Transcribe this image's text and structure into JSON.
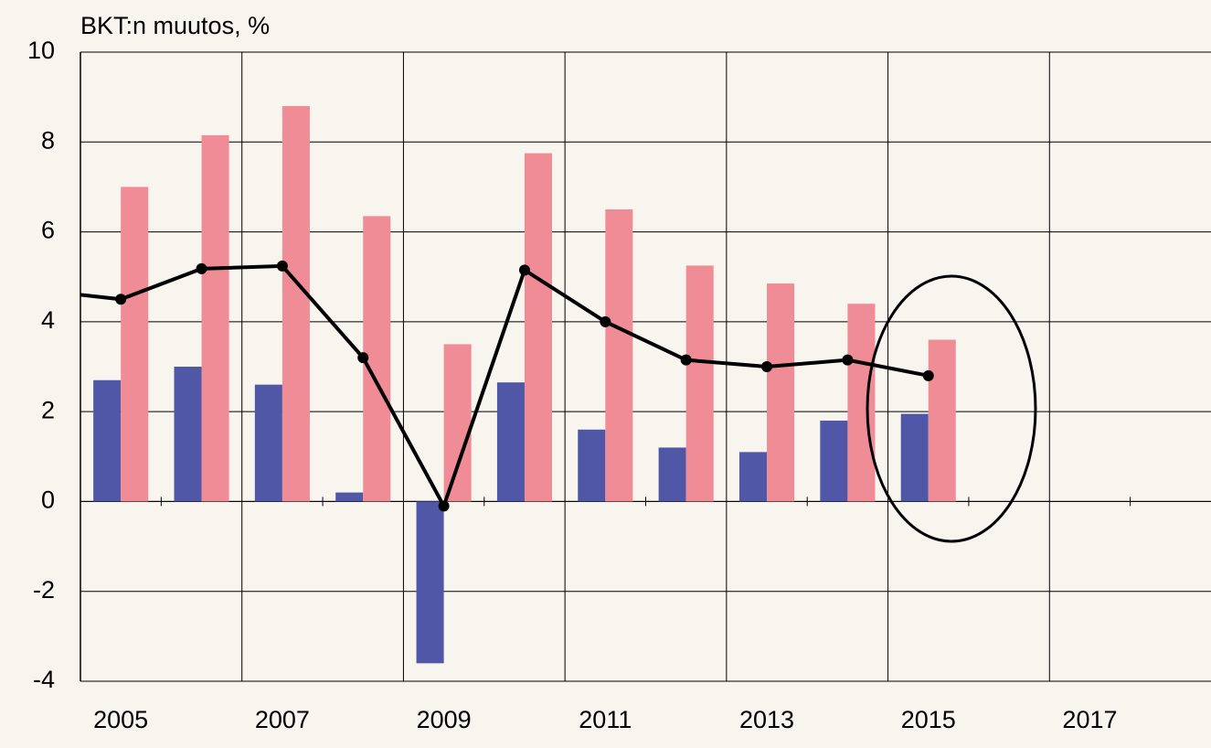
{
  "chart_data": {
    "type": "bar-line",
    "title": "BKT:n muutos, %",
    "x": [
      2004,
      2005,
      2006,
      2007,
      2008,
      2009,
      2010,
      2011,
      2012,
      2013,
      2014,
      2015
    ],
    "series": [
      {
        "type": "bar",
        "color": "#4f57a6",
        "values": [
          null,
          2.7,
          3.0,
          2.6,
          0.2,
          -3.6,
          2.65,
          1.6,
          1.2,
          1.1,
          1.8,
          1.95
        ]
      },
      {
        "type": "bar",
        "color": "#f08c96",
        "values": [
          null,
          7.0,
          8.15,
          8.8,
          6.35,
          3.5,
          7.75,
          6.5,
          5.25,
          4.85,
          4.4,
          3.6
        ]
      },
      {
        "type": "line",
        "color": "#000000",
        "values": [
          4.7,
          4.5,
          5.18,
          5.24,
          3.2,
          -0.1,
          5.15,
          4.0,
          3.15,
          3.0,
          3.15,
          2.8
        ]
      }
    ],
    "xlim": [
      2004.5,
      2018.5
    ],
    "xticks": [
      2005,
      2007,
      2009,
      2011,
      2013,
      2015,
      2017
    ],
    "ylim": [
      -4,
      10
    ],
    "yticks": [
      -4,
      -2,
      0,
      2,
      4,
      6,
      8,
      10
    ],
    "grid": true
  }
}
